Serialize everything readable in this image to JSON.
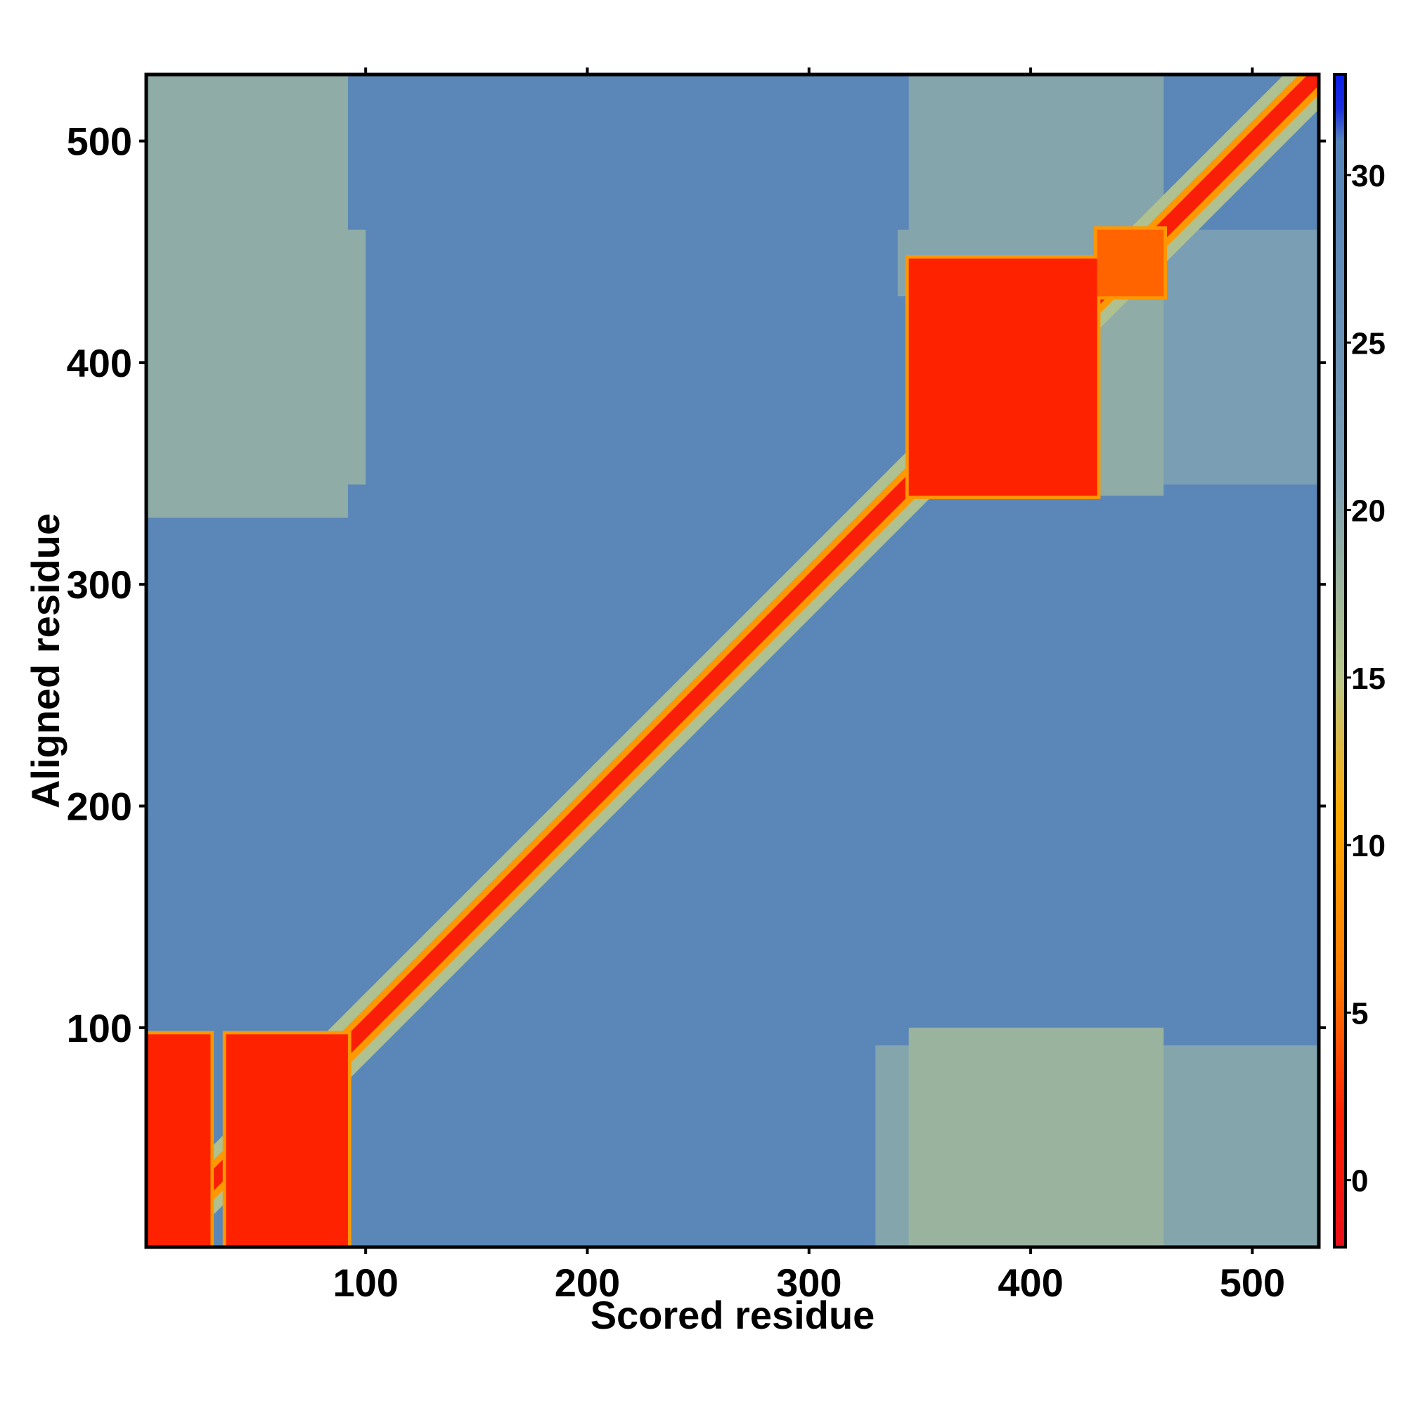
{
  "chart_data": {
    "type": "heatmap",
    "title": "",
    "xlabel": "Scored residue",
    "ylabel": "Aligned residue",
    "n_residues": 530,
    "xlim": [
      1,
      530
    ],
    "ylim": [
      1,
      530
    ],
    "x_ticks": [
      100,
      200,
      300,
      400,
      500
    ],
    "y_ticks": [
      100,
      200,
      300,
      400,
      500
    ],
    "colorbar": {
      "range": [
        -2,
        33
      ],
      "ticks": [
        0,
        5,
        10,
        15,
        20,
        25,
        30
      ],
      "stops": [
        {
          "value": -2,
          "color": "#e8101a"
        },
        {
          "value": 2,
          "color": "#ff2200"
        },
        {
          "value": 6,
          "color": "#ff7a00"
        },
        {
          "value": 11,
          "color": "#ffaa00"
        },
        {
          "value": 15,
          "color": "#b9c78a"
        },
        {
          "value": 21,
          "color": "#7a9eb4"
        },
        {
          "value": 29,
          "color": "#5a86b8"
        },
        {
          "value": 31,
          "color": "#5585bb"
        },
        {
          "value": 32,
          "color": "#1b2ee0"
        },
        {
          "value": 33,
          "color": "#0a1fe8"
        }
      ]
    },
    "background_value": 29,
    "diagonal_value": 1,
    "confident_blocks": [
      {
        "x_range": [
          1,
          30
        ],
        "y_range": [
          1,
          97
        ],
        "value": 2
      },
      {
        "x_range": [
          37,
          92
        ],
        "y_range": [
          1,
          97
        ],
        "value": 2
      },
      {
        "x_range": [
          345,
          430
        ],
        "y_range": [
          340,
          447
        ],
        "value": 2
      },
      {
        "x_range": [
          430,
          460
        ],
        "y_range": [
          430,
          460
        ],
        "value": 5
      }
    ],
    "intermediate_regions": [
      {
        "x_range": [
          1,
          92
        ],
        "y_range": [
          330,
          530
        ],
        "value": 19
      },
      {
        "x_range": [
          345,
          460
        ],
        "y_range": [
          1,
          100
        ],
        "value": 18
      },
      {
        "x_range": [
          345,
          460
        ],
        "y_range": [
          447,
          530
        ],
        "value": 20
      },
      {
        "x_range": [
          430,
          460
        ],
        "y_range": [
          340,
          430
        ],
        "value": 19
      }
    ]
  }
}
